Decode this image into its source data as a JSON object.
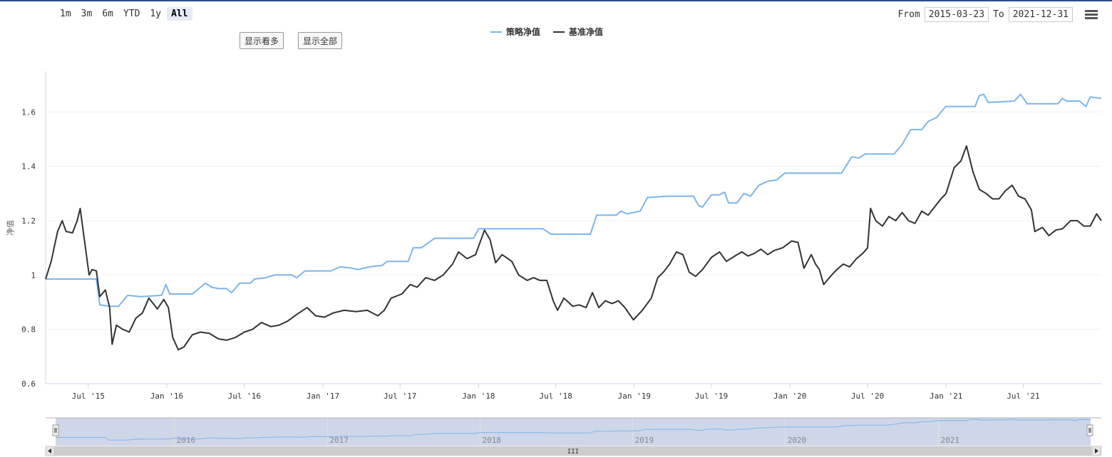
{
  "range_selector": {
    "buttons": [
      "1m",
      "3m",
      "6m",
      "YTD",
      "1y",
      "All"
    ],
    "active": "All"
  },
  "buttons": {
    "show_long": "显示看多",
    "show_all": "显示全部"
  },
  "date_range": {
    "from_label": "From",
    "from_value": "2015-03-23",
    "to_label": "To",
    "to_value": "2021-12-31"
  },
  "colors": {
    "strategy": "#7cb5ec",
    "benchmark": "#333333",
    "navigator_mask": "#cfd6ea"
  },
  "navigator": {
    "year_labels": [
      "2016",
      "2017",
      "2018",
      "2019",
      "2020",
      "2021"
    ],
    "scroll_glyph": "III"
  },
  "chart_data": {
    "type": "line",
    "title": "",
    "ylabel": "净值",
    "ylim": [
      0.6,
      1.75
    ],
    "yticks": [
      0.6,
      0.8,
      1,
      1.2,
      1.4,
      1.6
    ],
    "ytick_labels": [
      "0.6",
      "0.8",
      "1",
      "1.2",
      "1.4",
      "1.6"
    ],
    "xlim": [
      "2015-03-23",
      "2021-12-31"
    ],
    "xtick_labels": [
      {
        "date": "2015-07-01",
        "label": "Jul '15"
      },
      {
        "date": "2016-01-01",
        "label": "Jan '16"
      },
      {
        "date": "2016-07-01",
        "label": "Jul '16"
      },
      {
        "date": "2017-01-01",
        "label": "Jan '17"
      },
      {
        "date": "2017-07-01",
        "label": "Jul '17"
      },
      {
        "date": "2018-01-01",
        "label": "Jan '18"
      },
      {
        "date": "2018-07-01",
        "label": "Jul '18"
      },
      {
        "date": "2019-01-01",
        "label": "Jan '19"
      },
      {
        "date": "2019-07-01",
        "label": "Jul '19"
      },
      {
        "date": "2020-01-01",
        "label": "Jan '20"
      },
      {
        "date": "2020-07-01",
        "label": "Jul '20"
      },
      {
        "date": "2021-01-01",
        "label": "Jan '21"
      },
      {
        "date": "2021-07-01",
        "label": "Jul '21"
      }
    ],
    "legend_position": "top-center",
    "series": [
      {
        "name": "策略净值",
        "points": [
          [
            "2015-03-23",
            0.985
          ],
          [
            "2015-05-01",
            0.985
          ],
          [
            "2015-07-01",
            0.985
          ],
          [
            "2015-07-20",
            0.985
          ],
          [
            "2015-07-28",
            0.89
          ],
          [
            "2015-08-20",
            0.885
          ],
          [
            "2015-09-10",
            0.885
          ],
          [
            "2015-10-01",
            0.925
          ],
          [
            "2015-11-01",
            0.92
          ],
          [
            "2015-12-20",
            0.925
          ],
          [
            "2015-12-30",
            0.965
          ],
          [
            "2016-01-08",
            0.93
          ],
          [
            "2016-02-15",
            0.93
          ],
          [
            "2016-03-01",
            0.93
          ],
          [
            "2016-03-20",
            0.955
          ],
          [
            "2016-04-01",
            0.97
          ],
          [
            "2016-04-15",
            0.955
          ],
          [
            "2016-05-01",
            0.95
          ],
          [
            "2016-05-20",
            0.95
          ],
          [
            "2016-06-01",
            0.935
          ],
          [
            "2016-06-20",
            0.97
          ],
          [
            "2016-07-15",
            0.97
          ],
          [
            "2016-07-25",
            0.985
          ],
          [
            "2016-08-20",
            0.99
          ],
          [
            "2016-09-10",
            1.0
          ],
          [
            "2016-10-20",
            1.0
          ],
          [
            "2016-11-01",
            0.99
          ],
          [
            "2016-11-20",
            1.015
          ],
          [
            "2016-12-20",
            1.015
          ],
          [
            "2017-01-20",
            1.015
          ],
          [
            "2017-02-10",
            1.03
          ],
          [
            "2017-03-10",
            1.025
          ],
          [
            "2017-03-25",
            1.02
          ],
          [
            "2017-04-20",
            1.03
          ],
          [
            "2017-05-20",
            1.035
          ],
          [
            "2017-06-01",
            1.05
          ],
          [
            "2017-07-20",
            1.05
          ],
          [
            "2017-08-01",
            1.1
          ],
          [
            "2017-08-20",
            1.1
          ],
          [
            "2017-09-20",
            1.135
          ],
          [
            "2017-12-20",
            1.135
          ],
          [
            "2018-01-01",
            1.17
          ],
          [
            "2018-06-01",
            1.17
          ],
          [
            "2018-06-20",
            1.15
          ],
          [
            "2018-09-20",
            1.15
          ],
          [
            "2018-10-05",
            1.22
          ],
          [
            "2018-11-20",
            1.22
          ],
          [
            "2018-12-01",
            1.235
          ],
          [
            "2018-12-15",
            1.225
          ],
          [
            "2019-01-15",
            1.235
          ],
          [
            "2019-02-01",
            1.285
          ],
          [
            "2019-03-20",
            1.29
          ],
          [
            "2019-05-20",
            1.29
          ],
          [
            "2019-06-01",
            1.255
          ],
          [
            "2019-06-10",
            1.25
          ],
          [
            "2019-07-01",
            1.295
          ],
          [
            "2019-07-20",
            1.295
          ],
          [
            "2019-08-01",
            1.305
          ],
          [
            "2019-08-10",
            1.265
          ],
          [
            "2019-08-30",
            1.265
          ],
          [
            "2019-09-15",
            1.3
          ],
          [
            "2019-10-01",
            1.29
          ],
          [
            "2019-10-20",
            1.33
          ],
          [
            "2019-11-10",
            1.345
          ],
          [
            "2019-12-01",
            1.35
          ],
          [
            "2019-12-20",
            1.375
          ],
          [
            "2020-05-01",
            1.375
          ],
          [
            "2020-05-25",
            1.435
          ],
          [
            "2020-06-10",
            1.43
          ],
          [
            "2020-06-25",
            1.445
          ],
          [
            "2020-09-01",
            1.445
          ],
          [
            "2020-09-20",
            1.48
          ],
          [
            "2020-10-10",
            1.535
          ],
          [
            "2020-11-05",
            1.535
          ],
          [
            "2020-11-20",
            1.565
          ],
          [
            "2020-12-10",
            1.58
          ],
          [
            "2020-12-31",
            1.62
          ],
          [
            "2021-03-10",
            1.62
          ],
          [
            "2021-03-20",
            1.66
          ],
          [
            "2021-03-30",
            1.665
          ],
          [
            "2021-04-10",
            1.635
          ],
          [
            "2021-06-10",
            1.64
          ],
          [
            "2021-06-25",
            1.665
          ],
          [
            "2021-07-10",
            1.63
          ],
          [
            "2021-09-20",
            1.63
          ],
          [
            "2021-10-01",
            1.65
          ],
          [
            "2021-10-10",
            1.64
          ],
          [
            "2021-11-10",
            1.64
          ],
          [
            "2021-11-25",
            1.62
          ],
          [
            "2021-12-05",
            1.655
          ],
          [
            "2021-12-31",
            1.65
          ]
        ]
      },
      {
        "name": "基准净值",
        "points": [
          [
            "2015-03-23",
            0.985
          ],
          [
            "2015-04-05",
            1.05
          ],
          [
            "2015-04-20",
            1.16
          ],
          [
            "2015-05-01",
            1.2
          ],
          [
            "2015-05-10",
            1.16
          ],
          [
            "2015-05-25",
            1.155
          ],
          [
            "2015-06-05",
            1.2
          ],
          [
            "2015-06-12",
            1.245
          ],
          [
            "2015-06-20",
            1.15
          ],
          [
            "2015-07-03",
            1.0
          ],
          [
            "2015-07-10",
            1.02
          ],
          [
            "2015-07-20",
            1.015
          ],
          [
            "2015-07-28",
            0.92
          ],
          [
            "2015-08-10",
            0.945
          ],
          [
            "2015-08-20",
            0.88
          ],
          [
            "2015-08-26",
            0.745
          ],
          [
            "2015-09-05",
            0.815
          ],
          [
            "2015-09-20",
            0.8
          ],
          [
            "2015-10-05",
            0.79
          ],
          [
            "2015-10-20",
            0.84
          ],
          [
            "2015-11-05",
            0.86
          ],
          [
            "2015-11-20",
            0.915
          ],
          [
            "2015-12-10",
            0.875
          ],
          [
            "2015-12-25",
            0.91
          ],
          [
            "2016-01-05",
            0.88
          ],
          [
            "2016-01-15",
            0.77
          ],
          [
            "2016-01-28",
            0.725
          ],
          [
            "2016-02-10",
            0.735
          ],
          [
            "2016-03-01",
            0.78
          ],
          [
            "2016-03-20",
            0.79
          ],
          [
            "2016-04-10",
            0.785
          ],
          [
            "2016-05-01",
            0.765
          ],
          [
            "2016-05-20",
            0.76
          ],
          [
            "2016-06-10",
            0.77
          ],
          [
            "2016-07-01",
            0.79
          ],
          [
            "2016-07-20",
            0.8
          ],
          [
            "2016-08-10",
            0.825
          ],
          [
            "2016-09-01",
            0.81
          ],
          [
            "2016-09-20",
            0.815
          ],
          [
            "2016-10-10",
            0.83
          ],
          [
            "2016-11-01",
            0.855
          ],
          [
            "2016-11-25",
            0.88
          ],
          [
            "2016-12-15",
            0.85
          ],
          [
            "2017-01-05",
            0.845
          ],
          [
            "2017-01-25",
            0.86
          ],
          [
            "2017-02-20",
            0.87
          ],
          [
            "2017-03-20",
            0.865
          ],
          [
            "2017-04-15",
            0.87
          ],
          [
            "2017-05-10",
            0.85
          ],
          [
            "2017-05-25",
            0.87
          ],
          [
            "2017-06-10",
            0.915
          ],
          [
            "2017-07-05",
            0.93
          ],
          [
            "2017-07-25",
            0.965
          ],
          [
            "2017-08-10",
            0.955
          ],
          [
            "2017-08-30",
            0.99
          ],
          [
            "2017-09-20",
            0.98
          ],
          [
            "2017-10-10",
            1.0
          ],
          [
            "2017-11-01",
            1.04
          ],
          [
            "2017-11-15",
            1.085
          ],
          [
            "2017-12-05",
            1.06
          ],
          [
            "2017-12-25",
            1.075
          ],
          [
            "2018-01-15",
            1.165
          ],
          [
            "2018-01-28",
            1.13
          ],
          [
            "2018-02-10",
            1.045
          ],
          [
            "2018-02-25",
            1.075
          ],
          [
            "2018-03-20",
            1.05
          ],
          [
            "2018-04-05",
            1.0
          ],
          [
            "2018-04-25",
            0.98
          ],
          [
            "2018-05-10",
            0.99
          ],
          [
            "2018-05-25",
            0.98
          ],
          [
            "2018-06-10",
            0.98
          ],
          [
            "2018-06-25",
            0.905
          ],
          [
            "2018-07-05",
            0.87
          ],
          [
            "2018-07-20",
            0.915
          ],
          [
            "2018-08-10",
            0.885
          ],
          [
            "2018-08-25",
            0.89
          ],
          [
            "2018-09-10",
            0.88
          ],
          [
            "2018-09-25",
            0.935
          ],
          [
            "2018-10-10",
            0.88
          ],
          [
            "2018-10-25",
            0.905
          ],
          [
            "2018-11-10",
            0.895
          ],
          [
            "2018-11-25",
            0.905
          ],
          [
            "2018-12-10",
            0.88
          ],
          [
            "2018-12-30",
            0.835
          ],
          [
            "2019-01-20",
            0.87
          ],
          [
            "2019-02-10",
            0.915
          ],
          [
            "2019-02-25",
            0.99
          ],
          [
            "2019-03-10",
            1.01
          ],
          [
            "2019-03-25",
            1.04
          ],
          [
            "2019-04-10",
            1.085
          ],
          [
            "2019-04-25",
            1.075
          ],
          [
            "2019-05-10",
            1.01
          ],
          [
            "2019-05-25",
            0.995
          ],
          [
            "2019-06-10",
            1.02
          ],
          [
            "2019-07-01",
            1.065
          ],
          [
            "2019-07-20",
            1.085
          ],
          [
            "2019-08-05",
            1.05
          ],
          [
            "2019-08-25",
            1.07
          ],
          [
            "2019-09-10",
            1.085
          ],
          [
            "2019-09-25",
            1.07
          ],
          [
            "2019-10-10",
            1.08
          ],
          [
            "2019-10-25",
            1.095
          ],
          [
            "2019-11-10",
            1.075
          ],
          [
            "2019-11-25",
            1.09
          ],
          [
            "2019-12-15",
            1.1
          ],
          [
            "2020-01-05",
            1.125
          ],
          [
            "2020-01-20",
            1.12
          ],
          [
            "2020-02-03",
            1.025
          ],
          [
            "2020-02-20",
            1.075
          ],
          [
            "2020-03-01",
            1.04
          ],
          [
            "2020-03-10",
            1.02
          ],
          [
            "2020-03-20",
            0.965
          ],
          [
            "2020-04-05",
            0.995
          ],
          [
            "2020-04-20",
            1.02
          ],
          [
            "2020-05-05",
            1.04
          ],
          [
            "2020-05-20",
            1.03
          ],
          [
            "2020-06-05",
            1.06
          ],
          [
            "2020-06-20",
            1.08
          ],
          [
            "2020-07-01",
            1.1
          ],
          [
            "2020-07-08",
            1.245
          ],
          [
            "2020-07-20",
            1.2
          ],
          [
            "2020-08-05",
            1.18
          ],
          [
            "2020-08-20",
            1.215
          ],
          [
            "2020-09-05",
            1.2
          ],
          [
            "2020-09-20",
            1.23
          ],
          [
            "2020-10-05",
            1.2
          ],
          [
            "2020-10-20",
            1.19
          ],
          [
            "2020-11-05",
            1.235
          ],
          [
            "2020-11-20",
            1.22
          ],
          [
            "2020-12-05",
            1.25
          ],
          [
            "2020-12-20",
            1.28
          ],
          [
            "2021-01-01",
            1.3
          ],
          [
            "2021-01-20",
            1.395
          ],
          [
            "2021-02-05",
            1.42
          ],
          [
            "2021-02-18",
            1.475
          ],
          [
            "2021-03-05",
            1.38
          ],
          [
            "2021-03-20",
            1.315
          ],
          [
            "2021-04-05",
            1.3
          ],
          [
            "2021-04-20",
            1.28
          ],
          [
            "2021-05-05",
            1.28
          ],
          [
            "2021-05-20",
            1.31
          ],
          [
            "2021-06-05",
            1.33
          ],
          [
            "2021-06-20",
            1.29
          ],
          [
            "2021-07-05",
            1.28
          ],
          [
            "2021-07-20",
            1.24
          ],
          [
            "2021-07-28",
            1.16
          ],
          [
            "2021-08-15",
            1.175
          ],
          [
            "2021-08-30",
            1.145
          ],
          [
            "2021-09-15",
            1.165
          ],
          [
            "2021-10-01",
            1.17
          ],
          [
            "2021-10-20",
            1.2
          ],
          [
            "2021-11-05",
            1.2
          ],
          [
            "2021-11-20",
            1.18
          ],
          [
            "2021-12-05",
            1.18
          ],
          [
            "2021-12-20",
            1.225
          ],
          [
            "2021-12-31",
            1.2
          ]
        ]
      }
    ]
  }
}
